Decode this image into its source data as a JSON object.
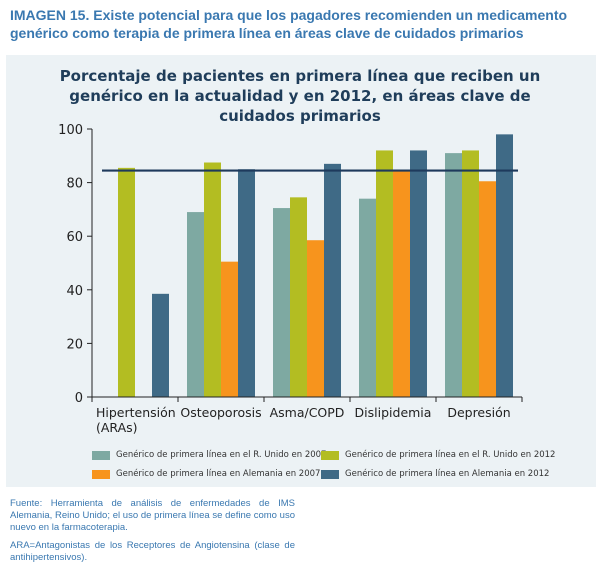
{
  "figure": {
    "title": "IMAGEN 15. Existe potencial para que los pagadores recomienden un medicamento genérico como terapia de primera línea en áreas clave de cuidados primarios",
    "source_note": "Fuente: Herramienta de análisis de enfermedades de IMS Alemania, Reino Unido; el uso de primera línea se define como uso nuevo en la farmacoterapia.",
    "abbreviation_note": "ARA=Antagonistas de los Receptores de Angiotensina (clase de antihipertensivos)."
  },
  "chart_data": {
    "type": "bar",
    "title": "Porcentaje de pacientes en primera línea que reciben un genérico en la actualidad y en 2012, en áreas clave de cuidados primarios",
    "categories": [
      "Hipertensión (ARAs)",
      "Osteoporosis",
      "Asma/COPD",
      "Dislipidemia",
      "Depresión"
    ],
    "category_lines": [
      [
        "Hipertensión",
        "(ARAs)"
      ],
      [
        "Osteoporosis"
      ],
      [
        "Asma/COPD"
      ],
      [
        "Dislipidemia"
      ],
      [
        "Depresión"
      ]
    ],
    "series": [
      {
        "name": "Genérico de primera línea en el R. Unido en 2007",
        "color": "#7ea9a2",
        "values": [
          null,
          69,
          70.5,
          74,
          91
        ]
      },
      {
        "name": "Genérico de primera línea en el R. Unido en 2012",
        "color": "#b3bd22",
        "values": [
          85.5,
          87.5,
          74.5,
          92,
          92
        ]
      },
      {
        "name": "Genérico de primera línea en Alemania en 2007",
        "color": "#f7941d",
        "values": [
          null,
          50.5,
          58.5,
          84.5,
          80.5
        ]
      },
      {
        "name": "Genérico de primera línea en Alemania en 2012",
        "color": "#3f6a86",
        "values": [
          38.5,
          85,
          87,
          92,
          98
        ]
      }
    ],
    "reference_line": {
      "value": 84.5,
      "color": "#1e3a5c"
    },
    "ylim": [
      0,
      100
    ],
    "yticks": [
      0,
      20,
      40,
      60,
      80,
      100
    ],
    "xlabel": "",
    "ylabel": "",
    "grid": false,
    "legend_position": "bottom"
  }
}
